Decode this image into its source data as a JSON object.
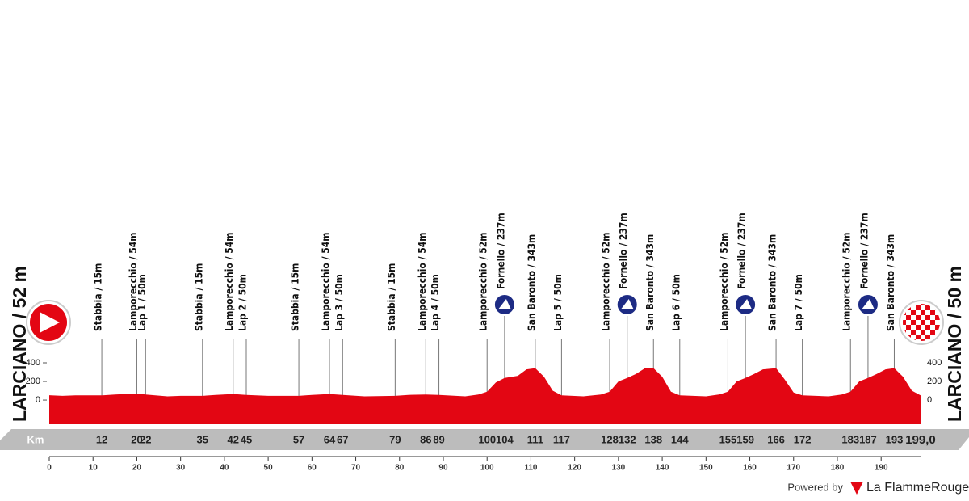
{
  "chart_data": {
    "type": "profile",
    "start": "LARCIANO / 52 m",
    "finish": "LARCIANO / 50 m",
    "km_label": "Km",
    "color": "#e30613",
    "x": [
      0,
      3,
      6,
      12,
      15,
      20,
      22,
      27,
      30,
      35,
      38,
      42,
      45,
      50,
      57,
      60,
      64,
      67,
      72,
      79,
      82,
      86,
      89,
      95,
      98,
      100,
      102,
      104,
      107,
      109,
      111,
      113,
      115,
      117,
      122,
      126,
      128,
      130,
      132,
      134,
      136,
      138,
      140,
      142,
      144,
      150,
      153,
      155,
      157,
      159,
      161,
      163,
      166,
      168,
      170,
      172,
      178,
      181,
      183,
      185,
      187,
      189,
      191,
      193,
      195,
      197,
      199
    ],
    "values": [
      52,
      45,
      50,
      50,
      60,
      70,
      60,
      40,
      45,
      45,
      55,
      65,
      55,
      45,
      45,
      55,
      65,
      55,
      40,
      45,
      55,
      60,
      55,
      40,
      60,
      90,
      190,
      237,
      260,
      330,
      343,
      250,
      100,
      50,
      40,
      60,
      90,
      200,
      237,
      280,
      340,
      343,
      250,
      90,
      50,
      40,
      60,
      90,
      200,
      237,
      280,
      330,
      343,
      220,
      80,
      50,
      40,
      60,
      90,
      200,
      237,
      280,
      330,
      343,
      250,
      100,
      50
    ],
    "xlim": [
      0,
      199
    ],
    "xticks": [
      0,
      10,
      20,
      30,
      40,
      50,
      60,
      70,
      80,
      90,
      100,
      110,
      120,
      130,
      140,
      150,
      160,
      170,
      180,
      190
    ],
    "ylim": [
      -260,
      400
    ],
    "yticks": [
      0,
      200,
      400
    ],
    "waypoints": [
      {
        "name": "Stabbia / 15m",
        "km": 12
      },
      {
        "name": "Lamporecchio / 54m",
        "km": 20
      },
      {
        "name": "Lap 1 / 50m",
        "km": 22
      },
      {
        "name": "Stabbia / 15m",
        "km": 35
      },
      {
        "name": "Lamporecchio / 54m",
        "km": 42
      },
      {
        "name": "Lap 2 / 50m",
        "km": 45
      },
      {
        "name": "Stabbia / 15m",
        "km": 57
      },
      {
        "name": "Lamporecchio / 54m",
        "km": 64
      },
      {
        "name": "Lap 3 / 50m",
        "km": 67
      },
      {
        "name": "Stabbia / 15m",
        "km": 79
      },
      {
        "name": "Lamporecchio / 54m",
        "km": 86
      },
      {
        "name": "Lap 4 / 50m",
        "km": 89
      },
      {
        "name": "Lamporecchio / 52m",
        "km": 100
      },
      {
        "name": "Fornello / 237m",
        "km": 104,
        "climb": true
      },
      {
        "name": "San Baronto / 343m",
        "km": 111
      },
      {
        "name": "Lap 5 / 50m",
        "km": 117
      },
      {
        "name": "Lamporecchio / 52m",
        "km": 128
      },
      {
        "name": "Fornello / 237m",
        "km": 132,
        "climb": true
      },
      {
        "name": "San Baronto / 343m",
        "km": 138
      },
      {
        "name": "Lap 6 / 50m",
        "km": 144
      },
      {
        "name": "Lamporecchio / 52m",
        "km": 155
      },
      {
        "name": "Fornello / 237m",
        "km": 159,
        "climb": true
      },
      {
        "name": "San Baronto / 343m",
        "km": 166
      },
      {
        "name": "Lap 7 / 50m",
        "km": 172
      },
      {
        "name": "Lamporecchio / 52m",
        "km": 183
      },
      {
        "name": "Fornello / 237m",
        "km": 187,
        "climb": true
      },
      {
        "name": "San Baronto / 343m",
        "km": 193
      }
    ],
    "finish_km": {
      "value": 199,
      "label": "199,0"
    },
    "footer": {
      "powered_by": "Powered by",
      "brand": "La FlammeRouge"
    }
  }
}
